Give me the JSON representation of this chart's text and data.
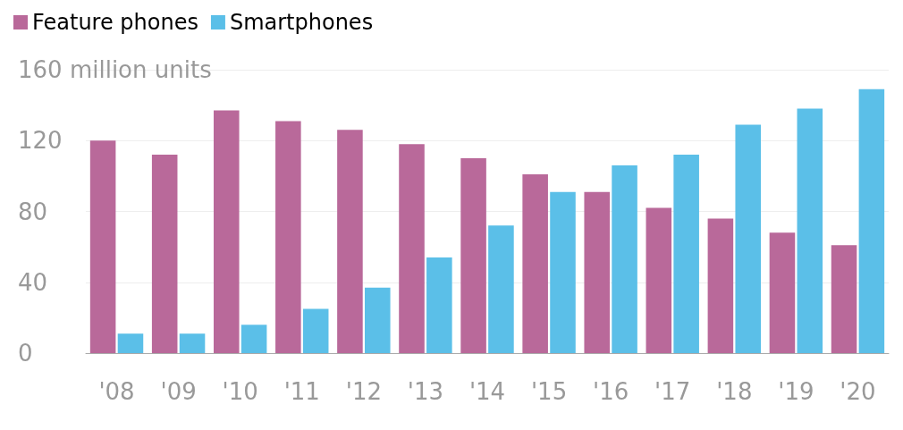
{
  "chart_data": {
    "type": "bar",
    "categories": [
      "'08",
      "'09",
      "'10",
      "'11",
      "'12",
      "'13",
      "'14",
      "'15",
      "'16",
      "'17",
      "'18",
      "'19",
      "'20"
    ],
    "series": [
      {
        "name": "Feature phones",
        "color": "#b9699a",
        "values": [
          120,
          112,
          137,
          131,
          126,
          118,
          110,
          101,
          91,
          82,
          76,
          68,
          61
        ]
      },
      {
        "name": "Smartphones",
        "color": "#5bbfe8",
        "values": [
          11,
          11,
          16,
          25,
          37,
          54,
          72,
          91,
          106,
          112,
          129,
          138,
          149
        ]
      }
    ],
    "ylim": [
      0,
      160
    ],
    "yticks": [
      0,
      40,
      80,
      120,
      {
        "value": 160,
        "label": "160 million units"
      }
    ],
    "grid": "y",
    "legend": "top left"
  }
}
